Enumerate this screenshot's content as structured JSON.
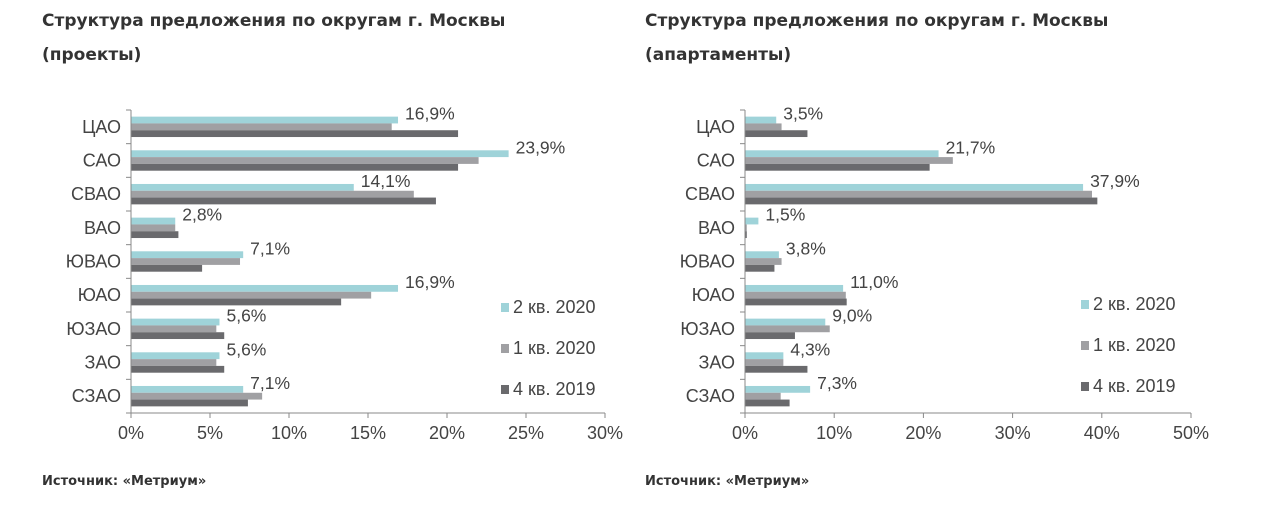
{
  "left": {
    "title_line1": "Структура предложения по округам г. Москвы",
    "title_line2": "(проекты)",
    "source": "Источник: «Метриум»"
  },
  "right": {
    "title_line1": "Структура предложения по округам г. Москвы",
    "title_line2": "(апартаменты)",
    "source": "Источник: «Метриум»"
  },
  "colors": {
    "q2_2020": "#9fd3d9",
    "q1_2020": "#a0a0a3",
    "q4_2019": "#6a6a6d"
  },
  "chart_data": [
    {
      "type": "bar",
      "orientation": "horizontal",
      "categories": [
        "ЦАО",
        "САО",
        "СВАО",
        "ВАО",
        "ЮВАО",
        "ЮАО",
        "ЮЗАО",
        "ЗАО",
        "СЗАО"
      ],
      "series": [
        {
          "name": "2 кв. 2020",
          "values": [
            16.9,
            23.9,
            14.1,
            2.8,
            7.1,
            16.9,
            5.6,
            5.6,
            7.1
          ]
        },
        {
          "name": "1 кв. 2020",
          "values": [
            16.5,
            22.0,
            17.9,
            2.8,
            6.9,
            15.2,
            5.4,
            5.4,
            8.3
          ]
        },
        {
          "name": "4 кв. 2019",
          "values": [
            20.7,
            20.7,
            19.3,
            3.0,
            4.5,
            13.3,
            5.9,
            5.9,
            7.4
          ]
        }
      ],
      "data_labels": [
        "16,9%",
        "23,9%",
        "14,1%",
        "2,8%",
        "7,1%",
        "16,9%",
        "5,6%",
        "5,6%",
        "7,1%"
      ],
      "xlim": [
        0,
        30
      ],
      "x_ticks": [
        "0%",
        "5%",
        "10%",
        "15%",
        "20%",
        "25%",
        "30%"
      ],
      "legend_position": "right",
      "grid": false
    },
    {
      "type": "bar",
      "orientation": "horizontal",
      "categories": [
        "ЦАО",
        "САО",
        "СВАО",
        "ВАО",
        "ЮВАО",
        "ЮАО",
        "ЮЗАО",
        "ЗАО",
        "СЗАО"
      ],
      "series": [
        {
          "name": "2 кв. 2020",
          "values": [
            3.5,
            21.7,
            37.9,
            1.5,
            3.8,
            11.0,
            9.0,
            4.3,
            7.3
          ]
        },
        {
          "name": "1 кв. 2020",
          "values": [
            4.1,
            23.3,
            38.9,
            0.2,
            4.1,
            11.3,
            9.5,
            4.3,
            4.0
          ]
        },
        {
          "name": "4 кв. 2019",
          "values": [
            7.0,
            20.7,
            39.5,
            0.2,
            3.3,
            11.4,
            5.6,
            7.0,
            5.0
          ]
        }
      ],
      "data_labels": [
        "3,5%",
        "21,7%",
        "37,9%",
        "1,5%",
        "3,8%",
        "11,0%",
        "9,0%",
        "4,3%",
        "7,3%"
      ],
      "xlim": [
        0,
        50
      ],
      "x_ticks": [
        "0%",
        "10%",
        "20%",
        "30%",
        "40%",
        "50%"
      ],
      "legend_position": "right",
      "grid": false
    }
  ]
}
